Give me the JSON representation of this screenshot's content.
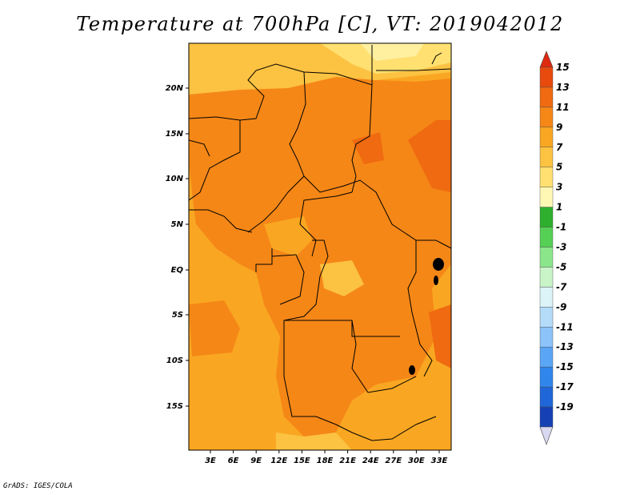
{
  "title": "Temperature at 700hPa [C], VT: 2019042012",
  "credit": "GrADS: IGES/COLA",
  "map": {
    "lat_labels": [
      "20N",
      "15N",
      "10N",
      "5N",
      "EQ",
      "5S",
      "10S",
      "15S"
    ],
    "lon_labels": [
      "3E",
      "6E",
      "9E",
      "12E",
      "15E",
      "18E",
      "21E",
      "24E",
      "27E",
      "30E",
      "33E"
    ]
  },
  "colorbar": {
    "colors": [
      "#0c1d7a",
      "#1541b4",
      "#1f66d8",
      "#3186eb",
      "#5aa6f5",
      "#8cc3f8",
      "#b4dcf9",
      "#dcf3f8",
      "#c8f4c8",
      "#8be68b",
      "#55d055",
      "#2eb02e",
      "#fff8b4",
      "#ffe070",
      "#fcc242",
      "#f9a722",
      "#f58717",
      "#ef6a10",
      "#e84a0e",
      "#de2a10"
    ],
    "labels": [
      "15",
      "13",
      "11",
      "9",
      "7",
      "5",
      "3",
      "1",
      "-1",
      "-3",
      "-5",
      "-7",
      "-9",
      "-11",
      "-13",
      "-15",
      "-17",
      "-19"
    ]
  }
}
